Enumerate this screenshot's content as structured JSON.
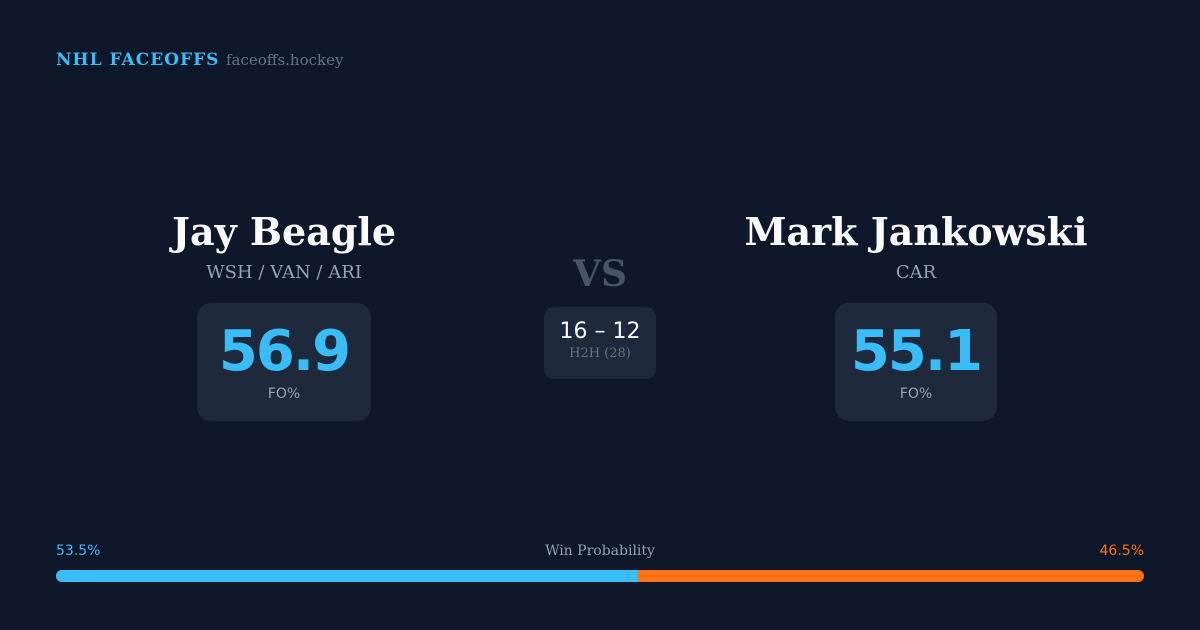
{
  "header": {
    "brand": "NHL FACEOFFS",
    "site": "faceoffs.hockey"
  },
  "left": {
    "name": "Jay Beagle",
    "teams": "WSH / VAN / ARI",
    "fo_pct": "56.9",
    "fo_label": "FO%"
  },
  "right": {
    "name": "Mark Jankowski",
    "teams": "CAR",
    "fo_pct": "55.1",
    "fo_label": "FO%"
  },
  "vs": "VS",
  "h2h": {
    "score": "16 – 12",
    "label": "H2H (28)"
  },
  "win_probability": {
    "label": "Win Probability",
    "left": "53.5%",
    "right": "46.5%",
    "left_value": 53.5,
    "left_color": "#38bdf8",
    "right_color": "#f97316"
  }
}
